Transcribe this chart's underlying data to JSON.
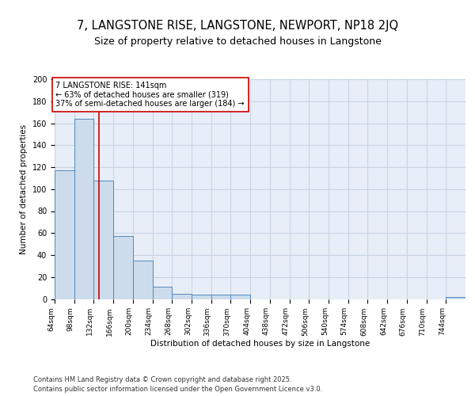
{
  "title": "7, LANGSTONE RISE, LANGSTONE, NEWPORT, NP18 2JQ",
  "subtitle": "Size of property relative to detached houses in Langstone",
  "xlabel": "Distribution of detached houses by size in Langstone",
  "ylabel": "Number of detached properties",
  "bin_labels": [
    "64sqm",
    "98sqm",
    "132sqm",
    "166sqm",
    "200sqm",
    "234sqm",
    "268sqm",
    "302sqm",
    "336sqm",
    "370sqm",
    "404sqm",
    "438sqm",
    "472sqm",
    "506sqm",
    "540sqm",
    "574sqm",
    "608sqm",
    "642sqm",
    "676sqm",
    "710sqm",
    "744sqm"
  ],
  "bin_edges": [
    64,
    98,
    132,
    166,
    200,
    234,
    268,
    302,
    336,
    370,
    404,
    438,
    472,
    506,
    540,
    574,
    608,
    642,
    676,
    710,
    744,
    778
  ],
  "bar_heights": [
    117,
    164,
    108,
    57,
    35,
    11,
    5,
    4,
    4,
    4,
    0,
    0,
    0,
    0,
    0,
    0,
    0,
    0,
    0,
    0,
    2
  ],
  "bar_color": "#ccdcec",
  "bar_edge_color": "#5588bb",
  "vline_x": 141,
  "vline_color": "#cc0000",
  "annotation_line1": "7 LANGSTONE RISE: 141sqm",
  "annotation_line2": "← 63% of detached houses are smaller (319)",
  "annotation_line3": "37% of semi-detached houses are larger (184) →",
  "annotation_box_color": "#ffffff",
  "annotation_box_edge_color": "#cc0000",
  "ylim": [
    0,
    200
  ],
  "yticks": [
    0,
    20,
    40,
    60,
    80,
    100,
    120,
    140,
    160,
    180,
    200
  ],
  "grid_color": "#c8d4e4",
  "bg_color": "#e8eef8",
  "footer_line1": "Contains HM Land Registry data © Crown copyright and database right 2025.",
  "footer_line2": "Contains public sector information licensed under the Open Government Licence v3.0.",
  "title_fontsize": 10.5,
  "subtitle_fontsize": 9,
  "axis_label_fontsize": 7.5,
  "tick_fontsize": 6.5,
  "annotation_fontsize": 7,
  "footer_fontsize": 6
}
